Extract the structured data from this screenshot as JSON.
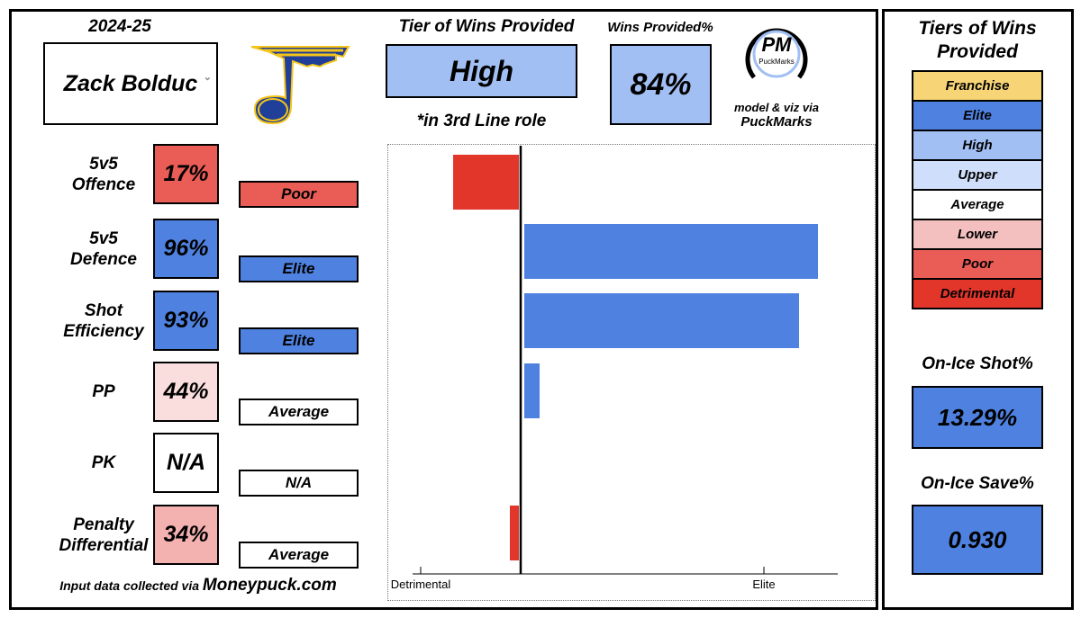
{
  "season": "2024-25",
  "player": {
    "name": "Zack Bolduc",
    "dropdown_glyph": "⌄"
  },
  "team_logo_icon": "st-louis-blues-note-icon",
  "tier_header": "Tier of Wins Provided",
  "tier_value": "High",
  "role_note": "*in 3rd Line role",
  "wins_pct_header": "Wins Provided%",
  "wins_pct_value": "84%",
  "brand": {
    "logo_text": "PM",
    "logo_sub": "PuckMarks",
    "credit_line1": "model & viz via",
    "credit_line2": "PuckMarks"
  },
  "metrics": [
    {
      "label1": "5v5",
      "label2": "Offence",
      "pct": "17%",
      "tier": "Poor",
      "pct_color": "#ea5d56",
      "tier_color": "#ea5d56",
      "bar_value": -0.25
    },
    {
      "label1": "5v5",
      "label2": "Defence",
      "pct": "96%",
      "tier": "Elite",
      "pct_color": "#4f82e0",
      "tier_color": "#4f82e0",
      "bar_value": 1.1
    },
    {
      "label1": "Shot",
      "label2": "Efficiency",
      "pct": "93%",
      "tier": "Elite",
      "pct_color": "#4f82e0",
      "tier_color": "#4f82e0",
      "bar_value": 1.03
    },
    {
      "label1": "PP",
      "label2": "",
      "pct": "44%",
      "tier": "Average",
      "pct_color": "#f9dedd",
      "tier_color": "#ffffff",
      "bar_value": 0.07
    },
    {
      "label1": "PK",
      "label2": "",
      "pct": "N/A",
      "tier": "N/A",
      "pct_color": "#ffffff",
      "tier_color": "#ffffff",
      "bar_value": 0
    },
    {
      "label1": "Penalty",
      "label2": "Differential",
      "pct": "34%",
      "tier": "Average",
      "pct_color": "#f3b1b0",
      "tier_color": "#ffffff",
      "bar_value": -0.04
    }
  ],
  "chart_data": {
    "type": "bar",
    "orientation": "horizontal",
    "categories": [
      "5v5 Offence",
      "5v5 Defence",
      "Shot Efficiency",
      "PP",
      "PK",
      "Penalty Differential"
    ],
    "values": [
      -0.25,
      1.1,
      1.03,
      0.07,
      0,
      -0.04
    ],
    "xlim": [
      -0.4,
      1.2
    ],
    "tick_labels": [
      "Detrimental",
      "Elite"
    ],
    "tick_values": [
      -0.37,
      0.9
    ],
    "zero_line": 0,
    "colors": {
      "positive": "#4f82e0",
      "negative": "#e2362b"
    }
  },
  "input_note_prefix": "Input data collected via ",
  "input_note_source": "Moneypuck.com",
  "tiers_legend": {
    "title_line1": "Tiers of Wins",
    "title_line2": "Provided",
    "items": [
      {
        "label": "Franchise",
        "color": "#f7d476",
        "text_color": "#000000"
      },
      {
        "label": "Elite",
        "color": "#4f82e0",
        "text_color": "#000000"
      },
      {
        "label": "High",
        "color": "#a2bff3",
        "text_color": "#000000"
      },
      {
        "label": "Upper",
        "color": "#cfdefa",
        "text_color": "#000000"
      },
      {
        "label": "Average",
        "color": "#ffffff",
        "text_color": "#000000"
      },
      {
        "label": "Lower",
        "color": "#f3c0bf",
        "text_color": "#000000"
      },
      {
        "label": "Poor",
        "color": "#ea5d56",
        "text_color": "#000000"
      },
      {
        "label": "Detrimental",
        "color": "#e2362b",
        "text_color": "#000000"
      }
    ]
  },
  "on_ice_shot": {
    "label": "On-Ice Shot%",
    "value": "13.29%"
  },
  "on_ice_save": {
    "label": "On-Ice Save%",
    "value": "0.930"
  },
  "colors": {
    "high_fill": "#a2bff3",
    "elite_fill": "#4f82e0",
    "blues_blue": "#1f3f99",
    "blues_yellow": "#f5c518"
  }
}
